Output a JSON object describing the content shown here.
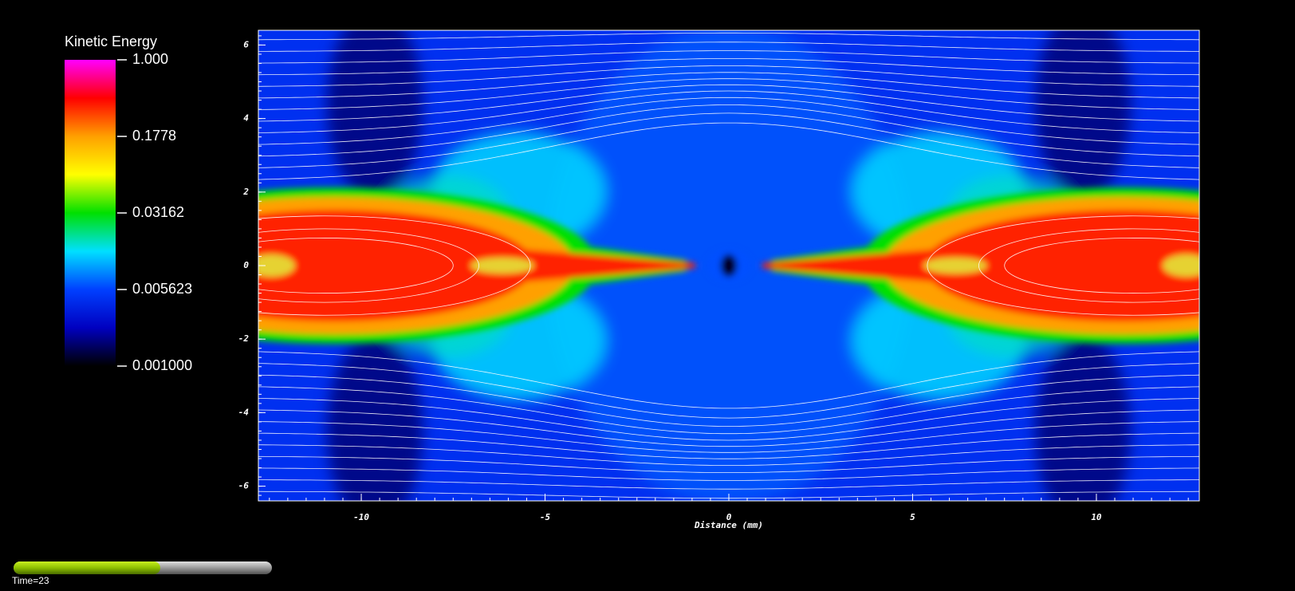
{
  "chart_data": {
    "type": "heatmap",
    "xlabel": "Distance (mm)",
    "xlim": [
      -12.8,
      12.8
    ],
    "ylim": [
      -6.4,
      6.4
    ],
    "xticks": [
      -10,
      -5,
      0,
      5,
      10
    ],
    "yticks": [
      -6,
      -4,
      -2,
      0,
      2,
      4,
      6
    ],
    "colorbar": {
      "title": "Kinetic Energy",
      "log": true,
      "lim": [
        0.001,
        1
      ],
      "ticks": [
        {
          "value": 1,
          "label": "1.000"
        },
        0.1778,
        0.03162,
        0.005623,
        {
          "value": 0.001,
          "label": "0.001000"
        }
      ],
      "colormap": [
        "#000000",
        "#0000c0",
        "#0040ff",
        "#00e0ff",
        "#00e000",
        "#ffff00",
        "#ffa000",
        "#ff0000",
        "#ff00ff"
      ]
    },
    "annotation": "Time=23"
  }
}
